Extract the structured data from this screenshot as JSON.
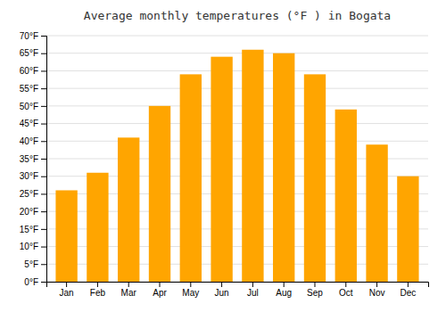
{
  "chart_data": {
    "type": "bar",
    "title": "Average monthly temperatures (°F ) in Bogata",
    "categories": [
      "Jan",
      "Feb",
      "Mar",
      "Apr",
      "May",
      "Jun",
      "Jul",
      "Aug",
      "Sep",
      "Oct",
      "Nov",
      "Dec"
    ],
    "values": [
      26,
      31,
      41,
      50,
      59,
      64,
      66,
      65,
      59,
      49,
      39,
      30
    ],
    "color": "#FFA500",
    "ylim": [
      0,
      70
    ],
    "yticks": [
      {
        "value": 0,
        "label": "0°F"
      },
      {
        "value": 5,
        "label": "5°F"
      },
      {
        "value": 10,
        "label": "10°F"
      },
      {
        "value": 15,
        "label": "15°F"
      },
      {
        "value": 20,
        "label": "20°F"
      },
      {
        "value": 25,
        "label": "25°F"
      },
      {
        "value": 30,
        "label": "30°F"
      },
      {
        "value": 35,
        "label": "35°F"
      },
      {
        "value": 40,
        "label": "40°F"
      },
      {
        "value": 45,
        "label": "45°F"
      },
      {
        "value": 50,
        "label": "50°F"
      },
      {
        "value": 55,
        "label": "55°F"
      },
      {
        "value": 60,
        "label": "60°F"
      },
      {
        "value": 65,
        "label": "65°F"
      },
      {
        "value": 70,
        "label": "70°F"
      }
    ],
    "grid": true
  }
}
